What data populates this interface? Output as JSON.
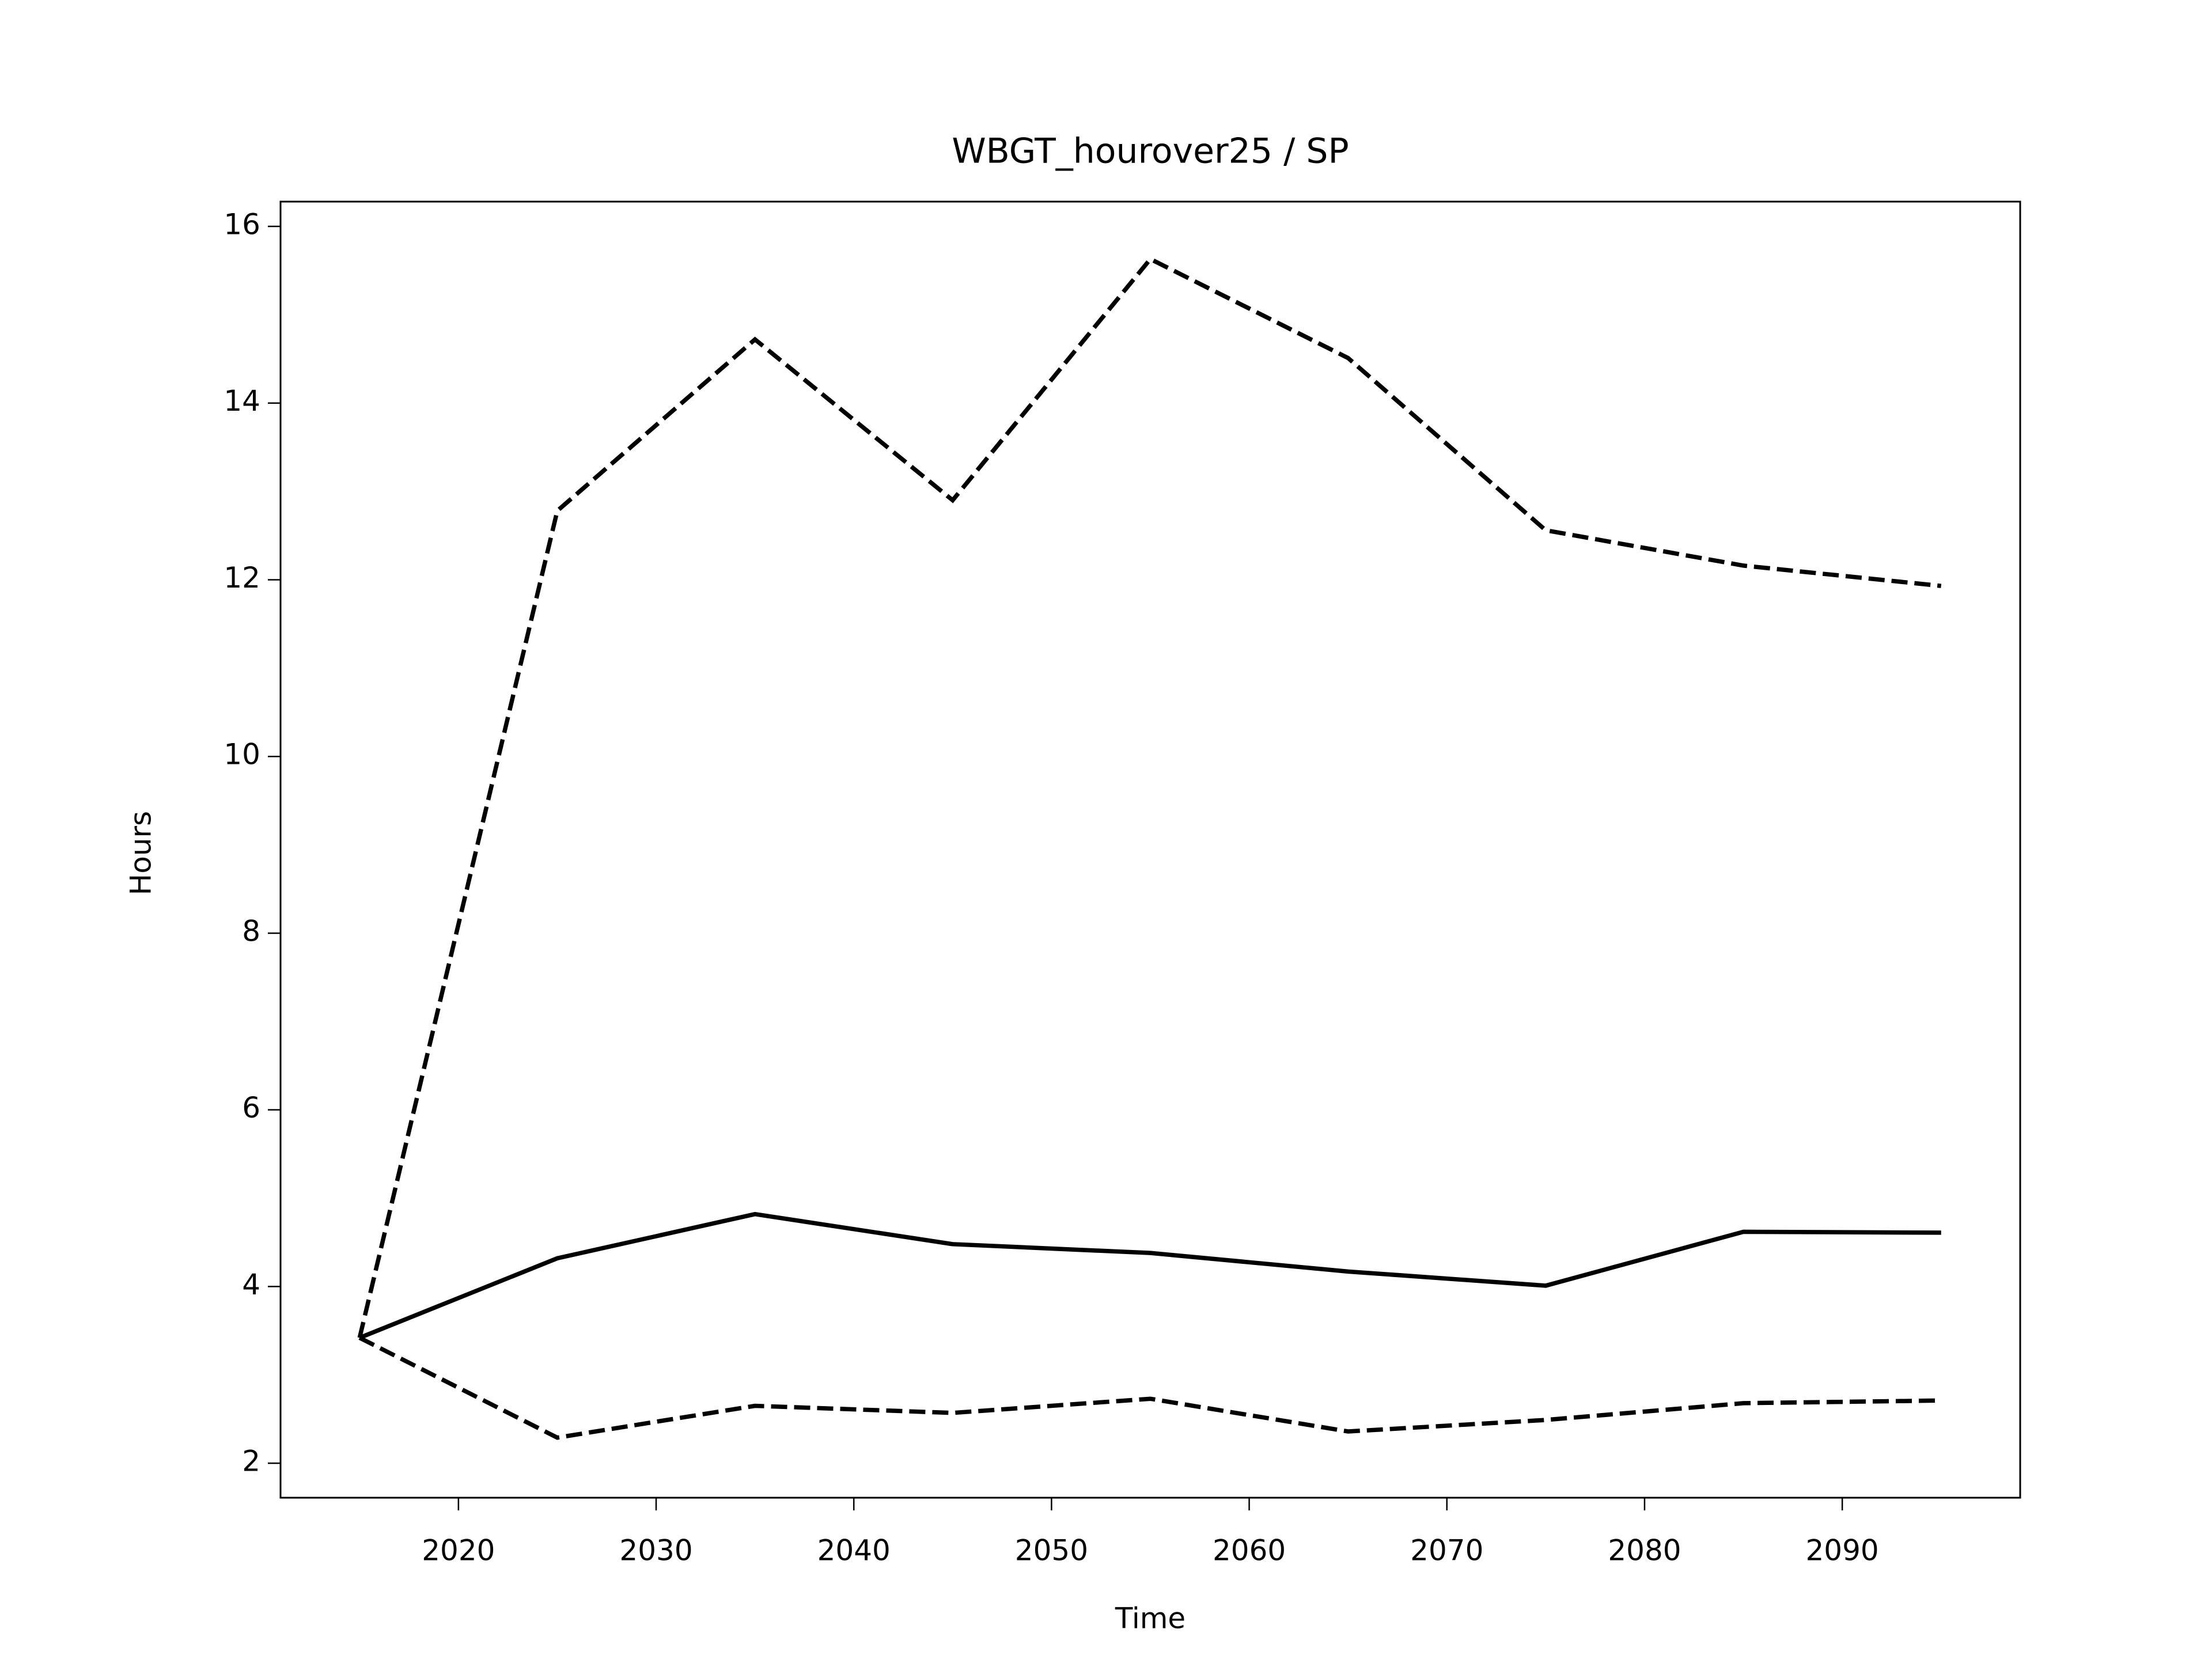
{
  "chart_data": {
    "type": "line",
    "title": "WBGT_hourover25 / SP",
    "xlabel": "Time",
    "ylabel": "Hours",
    "x": [
      2015,
      2025,
      2035,
      2045,
      2055,
      2065,
      2075,
      2085,
      2095
    ],
    "series": [
      {
        "color": "#000000",
        "linestyle": "solid",
        "values": [
          3.42,
          4.32,
          4.82,
          4.48,
          4.38,
          4.17,
          4.01,
          4.62,
          4.61
        ]
      },
      {
        "color": "#000000",
        "linestyle": "dashed",
        "values": [
          3.42,
          12.78,
          14.72,
          12.9,
          15.63,
          14.51,
          12.56,
          12.16,
          11.93
        ]
      },
      {
        "color": "#000000",
        "linestyle": "dashed",
        "values": [
          3.42,
          2.29,
          2.65,
          2.57,
          2.73,
          2.36,
          2.49,
          2.68,
          2.71
        ]
      }
    ],
    "xlim": [
      2011,
      2099
    ],
    "xticks": [
      2020,
      2030,
      2040,
      2050,
      2060,
      2070,
      2080,
      2090
    ],
    "ylim": [
      1.61,
      16.28
    ],
    "yticks": [
      2,
      4,
      6,
      8,
      10,
      12,
      14,
      16
    ],
    "grid": false
  }
}
